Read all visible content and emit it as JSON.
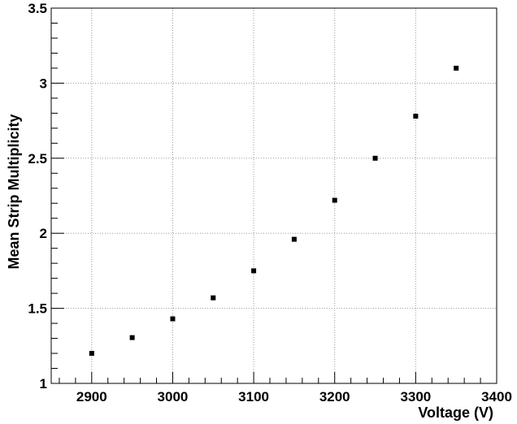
{
  "chart_data": {
    "type": "scatter",
    "xlabel": "Voltage (V)",
    "ylabel": "Mean Strip Multiplicity",
    "xlim": [
      2850,
      3400
    ],
    "ylim": [
      1,
      3.5
    ],
    "grid": true,
    "x_ticks": [
      "2900",
      "3000",
      "3100",
      "3200",
      "3300",
      "3400"
    ],
    "y_ticks": [
      "1",
      "1.5",
      "2",
      "2.5",
      "3",
      "3.5"
    ],
    "series": [
      {
        "x": [
          2900,
          2950,
          3000,
          3050,
          3100,
          3150,
          3200,
          3250,
          3300,
          3350
        ],
        "y": [
          1.2,
          1.305,
          1.43,
          1.57,
          1.75,
          1.96,
          2.22,
          2.5,
          2.78,
          3.1
        ]
      }
    ]
  }
}
